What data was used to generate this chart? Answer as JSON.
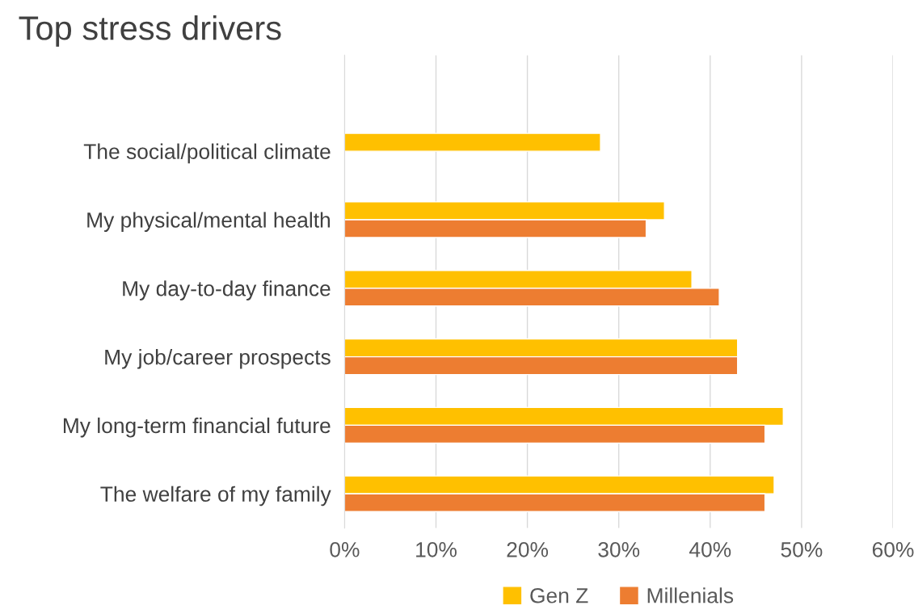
{
  "chart_data": {
    "type": "bar",
    "orientation": "horizontal",
    "title": "Top stress drivers",
    "categories": [
      "The social/political climate",
      "My physical/mental health",
      "My day-to-day finance",
      "My job/career prospects",
      "My long-term financial future",
      "The welfare of my family"
    ],
    "series": [
      {
        "name": "Gen Z",
        "color": "#ffc000",
        "values": [
          28,
          35,
          38,
          43,
          48,
          47
        ]
      },
      {
        "name": "Millenials",
        "color": "#ed7d31",
        "values": [
          null,
          33,
          41,
          43,
          46,
          46
        ]
      }
    ],
    "xlim": [
      0,
      60
    ],
    "xticks": [
      {
        "value": 0,
        "label": "0%"
      },
      {
        "value": 10,
        "label": "10%"
      },
      {
        "value": 20,
        "label": "20%"
      },
      {
        "value": 30,
        "label": "30%"
      },
      {
        "value": 40,
        "label": "40%"
      },
      {
        "value": 50,
        "label": "50%"
      },
      {
        "value": 60,
        "label": "60%"
      }
    ],
    "grid": "x",
    "legend": "bottom"
  }
}
